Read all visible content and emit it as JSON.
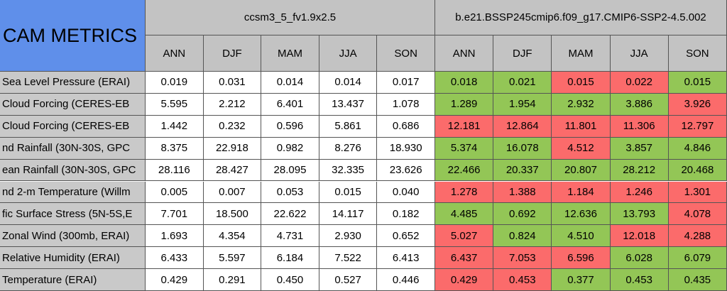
{
  "table": {
    "title": "CAM METRICS",
    "groups": [
      {
        "name": "ccsm3_5_fv1.9x2.5",
        "columns": [
          "ANN",
          "DJF",
          "MAM",
          "JJA",
          "SON"
        ]
      },
      {
        "name": "b.e21.BSSP245cmip6.f09_g17.CMIP6-SSP2-4.5.002",
        "columns": [
          "ANN",
          "DJF",
          "MAM",
          "JJA",
          "SON"
        ]
      }
    ],
    "colors": {
      "good": "#93c656",
      "bad": "#fb6b6b"
    },
    "rows": [
      {
        "label": "Sea Level Pressure (ERAI)",
        "base": [
          "0.019",
          "0.031",
          "0.014",
          "0.014",
          "0.017"
        ],
        "test": [
          "0.018",
          "0.021",
          "0.015",
          "0.022",
          "0.015"
        ],
        "status": [
          "good",
          "good",
          "bad",
          "bad",
          "good"
        ]
      },
      {
        "label": "Cloud Forcing (CERES-EB",
        "base": [
          "5.595",
          "2.212",
          "6.401",
          "13.437",
          "1.078"
        ],
        "test": [
          "1.289",
          "1.954",
          "2.932",
          "3.886",
          "3.926"
        ],
        "status": [
          "good",
          "good",
          "good",
          "good",
          "bad"
        ]
      },
      {
        "label": "Cloud Forcing (CERES-EB",
        "base": [
          "1.442",
          "0.232",
          "0.596",
          "5.861",
          "0.686"
        ],
        "test": [
          "12.181",
          "12.864",
          "11.801",
          "11.306",
          "12.797"
        ],
        "status": [
          "bad",
          "bad",
          "bad",
          "bad",
          "bad"
        ]
      },
      {
        "label": "nd Rainfall (30N-30S, GPC",
        "base": [
          "8.375",
          "22.918",
          "0.982",
          "8.276",
          "18.930"
        ],
        "test": [
          "5.374",
          "16.078",
          "4.512",
          "3.857",
          "4.846"
        ],
        "status": [
          "good",
          "good",
          "bad",
          "good",
          "good"
        ]
      },
      {
        "label": "ean Rainfall (30N-30S, GPC",
        "base": [
          "28.116",
          "28.427",
          "28.095",
          "32.335",
          "23.626"
        ],
        "test": [
          "22.466",
          "20.337",
          "20.807",
          "28.212",
          "20.468"
        ],
        "status": [
          "good",
          "good",
          "good",
          "good",
          "good"
        ]
      },
      {
        "label": "nd 2-m Temperature (Willm",
        "base": [
          "0.005",
          "0.007",
          "0.053",
          "0.015",
          "0.040"
        ],
        "test": [
          "1.278",
          "1.388",
          "1.184",
          "1.246",
          "1.301"
        ],
        "status": [
          "bad",
          "bad",
          "bad",
          "bad",
          "bad"
        ]
      },
      {
        "label": "fic Surface Stress (5N-5S,E",
        "base": [
          "7.701",
          "18.500",
          "22.622",
          "14.117",
          "0.182"
        ],
        "test": [
          "4.485",
          "0.692",
          "12.636",
          "13.793",
          "4.078"
        ],
        "status": [
          "good",
          "good",
          "good",
          "good",
          "bad"
        ]
      },
      {
        "label": "Zonal Wind (300mb, ERAI)",
        "base": [
          "1.693",
          "4.354",
          "4.731",
          "2.930",
          "0.652"
        ],
        "test": [
          "5.027",
          "0.824",
          "4.510",
          "12.018",
          "4.288"
        ],
        "status": [
          "bad",
          "good",
          "good",
          "bad",
          "bad"
        ]
      },
      {
        "label": "Relative Humidity (ERAI)",
        "base": [
          "6.433",
          "5.597",
          "6.184",
          "7.522",
          "6.413"
        ],
        "test": [
          "6.437",
          "7.053",
          "6.596",
          "6.028",
          "6.079"
        ],
        "status": [
          "bad",
          "bad",
          "bad",
          "good",
          "good"
        ]
      },
      {
        "label": "Temperature (ERAI)",
        "base": [
          "0.429",
          "0.291",
          "0.450",
          "0.527",
          "0.446"
        ],
        "test": [
          "0.429",
          "0.453",
          "0.377",
          "0.453",
          "0.435"
        ],
        "status": [
          "bad",
          "bad",
          "good",
          "good",
          "good"
        ]
      }
    ]
  }
}
